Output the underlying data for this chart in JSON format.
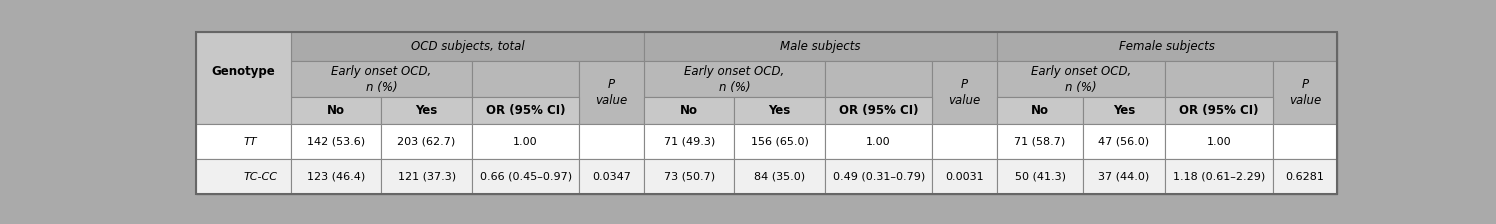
{
  "fig_bg": "#aaaaaa",
  "table_bg": "#ffffff",
  "header_top_bg": "#aaaaaa",
  "header_mid_bg": "#b8b8b8",
  "header_col_bg": "#c8c8c8",
  "data_row_bg": "#ffffff",
  "data_row2_bg": "#f0f0f0",
  "border_color": "#888888",
  "inner_border": "#cccccc",
  "text_color": "#000000",
  "group_headers": [
    "OCD subjects, total",
    "Male subjects",
    "Female subjects"
  ],
  "col_labels_no_yes": [
    "No",
    "Yes"
  ],
  "col_label_or": "OR (95% CI)",
  "col_label_p": "P\nvalue",
  "col_label_early": "Early onset OCD,\nn (%)",
  "col_label_genotype": "Genotype",
  "rows": [
    [
      "TT",
      "142 (53.6)",
      "203 (62.7)",
      "1.00",
      "",
      "71 (49.3)",
      "156 (65.0)",
      "1.00",
      "",
      "71 (58.7)",
      "47 (56.0)",
      "1.00",
      ""
    ],
    [
      "TC-CC",
      "123 (46.4)",
      "121 (37.3)",
      "0.66 (0.45–0.97)",
      "0.0347",
      "73 (50.7)",
      "84 (35.0)",
      "0.49 (0.31–0.79)",
      "0.0031",
      "50 (41.3)",
      "37 (44.0)",
      "1.18 (0.61–2.29)",
      "0.6281"
    ]
  ],
  "col_widths_rel": [
    1.1,
    1.05,
    1.05,
    1.25,
    0.75,
    1.05,
    1.05,
    1.25,
    0.75,
    1.0,
    0.95,
    1.25,
    0.75
  ],
  "figsize": [
    14.96,
    2.24
  ],
  "dpi": 100,
  "header_fontsize": 8.5,
  "data_fontsize": 8.0
}
